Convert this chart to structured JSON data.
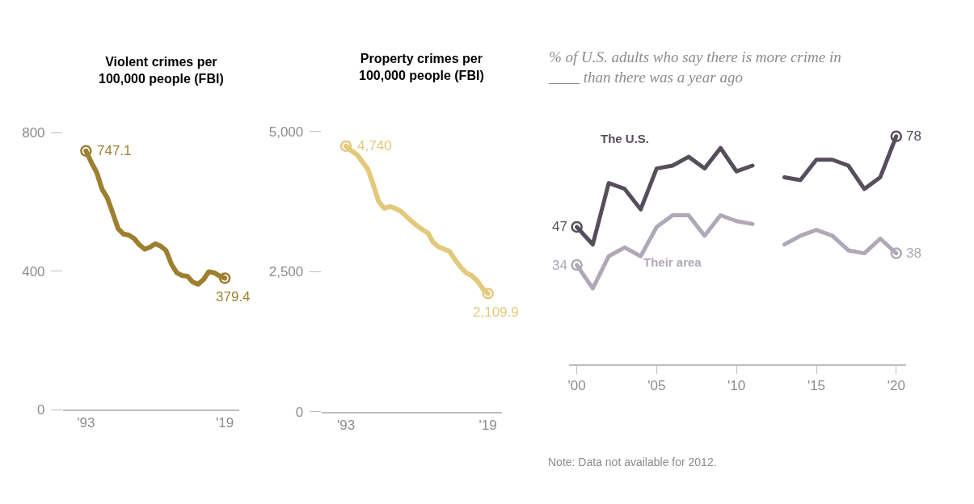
{
  "chart_data": [
    {
      "type": "line",
      "title": "Violent crimes per 100,000 people (FBI)",
      "x": [
        1993,
        1994,
        1995,
        1996,
        1997,
        1998,
        1999,
        2000,
        2001,
        2002,
        2003,
        2004,
        2005,
        2006,
        2007,
        2008,
        2009,
        2010,
        2011,
        2012,
        2013,
        2014,
        2015,
        2016,
        2017,
        2018,
        2019
      ],
      "series": [
        {
          "color": "#9c7f2f",
          "values": [
            747.1,
            714,
            685,
            637,
            611,
            568,
            523,
            507,
            504,
            494,
            476,
            463,
            469,
            479,
            472,
            459,
            420,
            395,
            387,
            385,
            368,
            362,
            375,
            398,
            395,
            386,
            379.4
          ],
          "value_labels": [
            "747.1",
            null,
            null,
            null,
            null,
            null,
            null,
            null,
            null,
            null,
            null,
            null,
            null,
            null,
            null,
            null,
            null,
            null,
            null,
            null,
            null,
            null,
            null,
            null,
            null,
            null,
            "379.4"
          ]
        }
      ],
      "xlim": [
        1988.7,
        2021.7
      ],
      "xticks": [
        {
          "value": 1993,
          "label": "'93"
        },
        {
          "value": 2019,
          "label": "'19"
        }
      ],
      "ylim": [
        0,
        800
      ],
      "yticks": [
        0,
        400,
        800
      ],
      "legend": false
    },
    {
      "type": "line",
      "title": "Property crimes per 100,000 people (FBI)",
      "x": [
        1993,
        1994,
        1995,
        1996,
        1997,
        1998,
        1999,
        2000,
        2001,
        2002,
        2003,
        2004,
        2005,
        2006,
        2007,
        2008,
        2009,
        2010,
        2011,
        2012,
        2013,
        2014,
        2015,
        2016,
        2017,
        2018,
        2019
      ],
      "series": [
        {
          "color": "#e3c97c",
          "values": [
            4740,
            4660,
            4590,
            4460,
            4330,
            4050,
            3750,
            3630,
            3660,
            3630,
            3580,
            3490,
            3400,
            3320,
            3250,
            3190,
            3020,
            2940,
            2900,
            2860,
            2710,
            2580,
            2480,
            2430,
            2340,
            2200,
            2109.9
          ],
          "value_labels": [
            "4,740",
            null,
            null,
            null,
            null,
            null,
            null,
            null,
            null,
            null,
            null,
            null,
            null,
            null,
            null,
            null,
            null,
            null,
            null,
            null,
            null,
            null,
            null,
            null,
            null,
            null,
            "2,109.9"
          ]
        }
      ],
      "xlim": [
        1988.5,
        2021.5
      ],
      "xticks": [
        {
          "value": 1993,
          "label": "'93"
        },
        {
          "value": 2019,
          "label": "'19"
        }
      ],
      "ylim": [
        0,
        5000
      ],
      "yticks": [
        {
          "value": 0,
          "label": "0"
        },
        {
          "value": 2500,
          "label": "2,500"
        },
        {
          "value": 5000,
          "label": "5,000"
        }
      ],
      "legend": false
    },
    {
      "type": "line",
      "title": "% of U.S. adults who say there is more crime in ____ than there was a year ago",
      "x": [
        2000,
        2001,
        2002,
        2003,
        2004,
        2005,
        2006,
        2007,
        2008,
        2009,
        2010,
        2011,
        2012,
        2013,
        2014,
        2015,
        2016,
        2017,
        2018,
        2019,
        2020
      ],
      "series": [
        {
          "name": "The U.S.",
          "color": "#574e5c",
          "values": [
            47,
            41,
            62,
            60,
            53,
            67,
            68,
            71,
            67,
            74,
            66,
            68,
            null,
            64,
            63,
            70,
            70,
            68,
            60,
            64,
            78
          ],
          "value_labels": [
            "47",
            null,
            null,
            null,
            null,
            null,
            null,
            null,
            null,
            null,
            null,
            null,
            null,
            null,
            null,
            null,
            null,
            null,
            null,
            null,
            "78"
          ]
        },
        {
          "name": "Their area",
          "color": "#b0a8b6",
          "values": [
            34,
            26,
            37,
            40,
            37,
            47,
            51,
            51,
            44,
            51,
            49,
            48,
            null,
            41,
            44,
            46,
            44,
            39,
            38,
            43,
            38
          ],
          "value_labels": [
            "34",
            null,
            null,
            null,
            null,
            null,
            null,
            null,
            null,
            null,
            null,
            null,
            null,
            null,
            null,
            null,
            null,
            null,
            null,
            null,
            "38"
          ]
        }
      ],
      "xlim": [
        1999.5,
        2020.6
      ],
      "xticks": [
        {
          "value": 2000,
          "label": "'00"
        },
        {
          "value": 2005,
          "label": "'05"
        },
        {
          "value": 2010,
          "label": "'10"
        },
        {
          "value": 2015,
          "label": "'15"
        },
        {
          "value": 2020,
          "label": "'20"
        }
      ],
      "tick_labels": "x",
      "legend": false,
      "annotations": [
        "Note: Data not available for 2012."
      ]
    }
  ]
}
